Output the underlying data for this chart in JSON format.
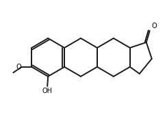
{
  "bg_color": "#ffffff",
  "line_color": "#1a1a1a",
  "line_width": 1.4,
  "text_color": "#000000",
  "figsize": [
    2.41,
    1.71
  ],
  "dpi": 100,
  "label_O": "O",
  "label_OH": "OH",
  "label_OCH3_O": "O",
  "font_size": 7
}
